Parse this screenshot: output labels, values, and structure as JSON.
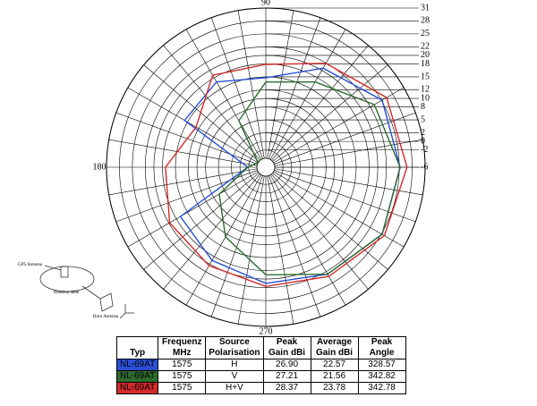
{
  "chart_data": {
    "type": "polar",
    "theta": [
      0,
      30,
      60,
      90,
      120,
      150,
      180,
      210,
      240,
      270,
      300,
      330
    ],
    "rlim": [
      -6,
      31
    ],
    "rticks": [
      31,
      28,
      25,
      22,
      20,
      18,
      15,
      12,
      10,
      8,
      5,
      2,
      0,
      -2,
      -6
    ],
    "theta_labels": [
      90,
      180,
      270
    ],
    "series": [
      {
        "color": "#2a4fd6",
        "values": [
          25.2,
          25.2,
          20.6,
          14.8,
          16.9,
          15.8,
          -1.8,
          16.9,
          19.0,
          21.0,
          22.7,
          25.2
        ]
      },
      {
        "color": "#2e6b2e",
        "values": [
          25.2,
          23.1,
          16.9,
          13.8,
          6.5,
          -3.9,
          -1.8,
          6.5,
          12.7,
          19.0,
          22.7,
          25.2
        ]
      },
      {
        "color": "#d42a2a",
        "values": [
          26.8,
          26.4,
          21.9,
          17.9,
          18.7,
          12.7,
          17.3,
          19.8,
          20.4,
          21.7,
          23.3,
          25.8
        ]
      }
    ]
  },
  "setup": {
    "labels": [
      "GPS Antenna",
      "Rotation table",
      "Horn Antenna"
    ]
  },
  "table": {
    "header": [
      [
        "Typ"
      ],
      [
        "Frequenz",
        "MHz"
      ],
      [
        "Source",
        "Polarisation"
      ],
      [
        "Peak",
        "Gain dBi"
      ],
      [
        "Average",
        "Gain dBi"
      ],
      [
        "Peak",
        "Angle"
      ]
    ],
    "rows": [
      [
        "NL-69AT",
        "1575",
        "H",
        "26.90",
        "22.57",
        "328.57"
      ],
      [
        "NL-69AT",
        "1575",
        "V",
        "27.21",
        "21.56",
        "342.82"
      ],
      [
        "NL-69AT",
        "1575",
        "H+V",
        "28.37",
        "23.78",
        "342.78"
      ]
    ]
  }
}
